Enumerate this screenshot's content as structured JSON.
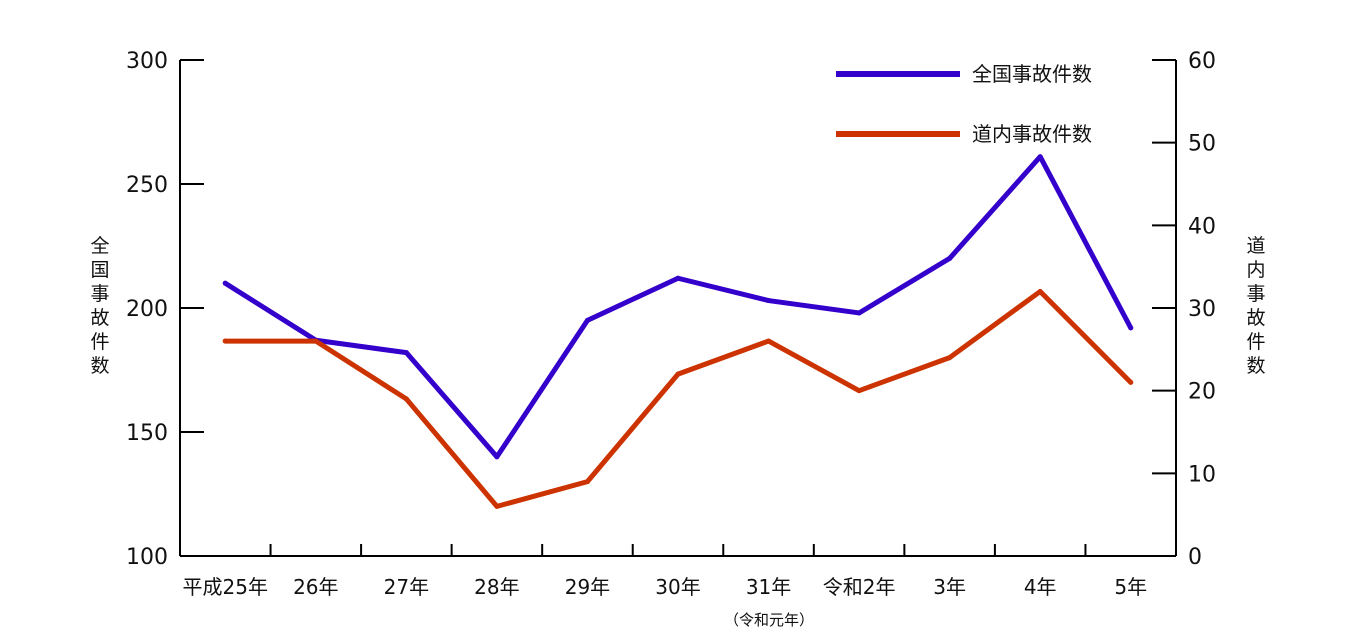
{
  "chart_data": {
    "type": "line",
    "categories": [
      "平成25年",
      "26年",
      "27年",
      "28年",
      "29年",
      "30年",
      "31年",
      "令和2年",
      "3年",
      "4年",
      "5年"
    ],
    "category_note": "（令和元年）",
    "left_axis": {
      "label": "全国事故件数",
      "ticks": [
        100,
        150,
        200,
        250,
        300
      ],
      "range": [
        100,
        300
      ]
    },
    "right_axis": {
      "label": "道内事故件数",
      "ticks": [
        0,
        10,
        20,
        30,
        40,
        50,
        60
      ],
      "range": [
        0,
        60
      ]
    },
    "series": [
      {
        "name": "全国事故件数",
        "axis": "left",
        "color": "#3300cc",
        "values": [
          210,
          187,
          182,
          140,
          195,
          212,
          203,
          198,
          220,
          261,
          192
        ]
      },
      {
        "name": "道内事故件数",
        "axis": "right",
        "color": "#cc3300",
        "values": [
          26,
          26,
          19,
          6,
          9,
          22,
          26,
          20,
          24,
          32,
          21
        ]
      }
    ],
    "legend_position": "top-right",
    "grid": false
  }
}
